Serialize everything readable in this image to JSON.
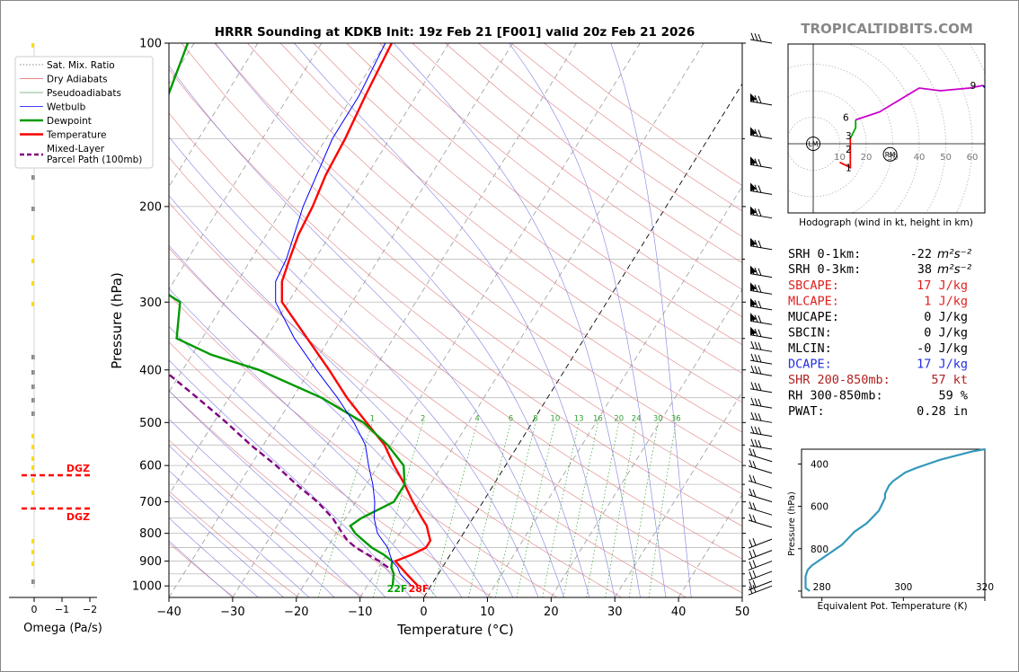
{
  "header": {
    "title": "HRRR Sounding at KDKB Init: 19z Feb 21 [F001] valid 20z Feb 21 2026",
    "brand": "TROPICALTIDBITS.COM"
  },
  "legend": [
    {
      "label": "Sat. Mix. Ratio",
      "color": "#666666",
      "style": "dotted"
    },
    {
      "label": "Dry Adiabats",
      "color": "#e06060",
      "style": "solid-thin"
    },
    {
      "label": "Pseudoadiabats",
      "color": "#60a060",
      "style": "solid-thin"
    },
    {
      "label": "Wetbulb",
      "color": "#0000ff",
      "style": "solid-thin"
    },
    {
      "label": "Dewpoint",
      "color": "#009900",
      "style": "solid"
    },
    {
      "label": "Temperature",
      "color": "#ff0000",
      "style": "solid"
    },
    {
      "label": "Mixed-Layer\nParcel Path (100mb)",
      "color": "#800080",
      "style": "dashed"
    }
  ],
  "skewt": {
    "xlabel": "Temperature (°C)",
    "ylabel": "Pressure (hPa)",
    "xticks": [
      -40,
      -30,
      -20,
      -10,
      0,
      10,
      20,
      30,
      40,
      50
    ],
    "yticks": [
      100,
      200,
      300,
      400,
      500,
      600,
      700,
      800,
      900,
      1000
    ],
    "mixing_ratio_labels": [
      "1",
      "2",
      "4",
      "6",
      "8",
      "10",
      "13",
      "16",
      "20",
      "24",
      "30",
      "36"
    ],
    "surface_dewpoint_label": "22F",
    "surface_temperature_label": "28F"
  },
  "omega": {
    "xlabel": "Omega (Pa/s)",
    "xticks": [
      "0",
      "−1",
      "−2"
    ],
    "dgz_label": "DGZ"
  },
  "hodograph": {
    "caption": "Hodograph (wind in kt, height in km)",
    "ring_labels": [
      "10",
      "20",
      "30",
      "40",
      "50",
      "60"
    ],
    "height_labels": [
      "1",
      "2",
      "3",
      "6",
      "9"
    ],
    "markers": [
      "LM",
      "RM"
    ]
  },
  "stats": {
    "srh01_label": "SRH 0-1km:",
    "srh01_value": "-22",
    "srh03_label": "SRH 0-3km:",
    "srh03_value": "38",
    "srh_unit": "m²s⁻²",
    "rows": [
      {
        "label": "SBCAPE:",
        "value": "17 J/kg",
        "color": "#e02020"
      },
      {
        "label": "MLCAPE:",
        "value": "1 J/kg",
        "color": "#e02020"
      },
      {
        "label": "MUCAPE:",
        "value": "0 J/kg",
        "color": "#000000"
      },
      {
        "label": "SBCIN:",
        "value": "0 J/kg",
        "color": "#000000"
      },
      {
        "label": "MLCIN:",
        "value": "-0 J/kg",
        "color": "#000000"
      },
      {
        "label": "DCAPE:",
        "value": "17 J/kg",
        "color": "#2030e0"
      },
      {
        "label": "SHR 200-850mb:",
        "value": "57 kt",
        "color": "#b02020"
      },
      {
        "label": "RH 300-850mb:",
        "value": "59 %",
        "color": "#000000"
      },
      {
        "label": "PWAT:",
        "value": "0.28 in",
        "color": "#000000"
      }
    ]
  },
  "theta_e_plot": {
    "xlabel": "Equivalent Pot. Temperature (K)",
    "ylabel": "Pressure (hPa)",
    "xticks": [
      "280",
      "300",
      "320"
    ],
    "yticks": [
      "400",
      "600",
      "800"
    ]
  },
  "chart_data": [
    {
      "type": "line",
      "title": "HRRR Sounding at KDKB Init: 19z Feb 21 [F001] valid 20z Feb 21 2026",
      "xlabel": "Temperature (°C)",
      "ylabel": "Pressure (hPa)",
      "xlim": [
        -40,
        50
      ],
      "ylim": [
        1050,
        100
      ],
      "yscale": "log",
      "series": [
        {
          "name": "Temperature",
          "color": "#ff0000",
          "p": [
            1000,
            975,
            950,
            925,
            900,
            875,
            850,
            825,
            800,
            775,
            750,
            725,
            700,
            650,
            600,
            550,
            500,
            450,
            400,
            350,
            300,
            275,
            250,
            225,
            200,
            175,
            150,
            125,
            100
          ],
          "t": [
            -2,
            -3.5,
            -5,
            -6.5,
            -8,
            -6,
            -4.5,
            -4.5,
            -5.5,
            -6.5,
            -8,
            -9.5,
            -11,
            -14,
            -17.5,
            -21,
            -26,
            -31.5,
            -37,
            -43.5,
            -51,
            -53,
            -54,
            -55,
            -55.5,
            -56.5,
            -57,
            -58,
            -59
          ]
        },
        {
          "name": "Dewpoint",
          "color": "#009900",
          "p": [
            1000,
            975,
            950,
            925,
            900,
            875,
            850,
            825,
            800,
            775,
            750,
            700,
            650,
            600,
            550,
            500,
            450,
            400,
            375,
            350,
            300,
            275,
            250,
            225,
            200,
            175,
            150,
            125,
            100
          ],
          "t": [
            -6,
            -6.5,
            -7,
            -8,
            -8.5,
            -10.5,
            -13,
            -15,
            -17,
            -18.5,
            -17.5,
            -14,
            -14,
            -16,
            -20.5,
            -26.5,
            -35.5,
            -48,
            -57,
            -64,
            -67,
            -74,
            -78,
            -80,
            -81,
            -85,
            -88,
            -89,
            -91
          ]
        },
        {
          "name": "Wetbulb",
          "color": "#0000ff",
          "p": [
            1000,
            975,
            950,
            925,
            900,
            875,
            850,
            825,
            800,
            775,
            750,
            700,
            650,
            600,
            550,
            500,
            450,
            400,
            350,
            300,
            275,
            250,
            200,
            150,
            125,
            100
          ],
          "t": [
            -3,
            -4.5,
            -6,
            -7,
            -8.5,
            -9.5,
            -10.5,
            -12,
            -13.5,
            -14.5,
            -15.5,
            -17,
            -19,
            -21.5,
            -24,
            -28,
            -33,
            -39,
            -45.5,
            -52,
            -54,
            -54.5,
            -57,
            -59,
            -59,
            -60
          ]
        },
        {
          "name": "Mixed-Layer Parcel Path (100mb)",
          "color": "#800080",
          "p": [
            925,
            900,
            875,
            850,
            825,
            800,
            775,
            750,
            700,
            650,
            600,
            550,
            500,
            450,
            400,
            350
          ],
          "t": [
            -8.5,
            -10.5,
            -13,
            -15.5,
            -17.5,
            -19,
            -20.5,
            -22,
            -26,
            -31,
            -36,
            -42,
            -48,
            -55,
            -63,
            -72
          ]
        }
      ]
    },
    {
      "type": "line",
      "xlabel": "Equivalent Pot. Temperature (K)",
      "ylabel": "Pressure (hPa)",
      "xlim": [
        275,
        320
      ],
      "ylim": [
        1030,
        330
      ],
      "series": [
        {
          "p": [
            1000,
            985,
            960,
            930,
            900,
            880,
            860,
            840,
            820,
            800,
            780,
            760,
            740,
            720,
            700,
            680,
            660,
            640,
            620,
            600,
            580,
            560,
            540,
            520,
            500,
            480,
            460,
            440,
            420,
            400,
            380,
            360,
            340,
            330
          ],
          "theta_e": [
            277,
            276,
            276,
            276,
            276.5,
            277.5,
            279,
            280.5,
            282,
            283.5,
            285,
            286,
            287,
            288,
            289.5,
            291,
            292,
            293,
            294,
            294.5,
            295,
            295.5,
            295.5,
            296,
            296.5,
            297.5,
            299,
            300.5,
            303,
            306,
            309,
            313,
            317,
            320
          ]
        }
      ]
    }
  ]
}
